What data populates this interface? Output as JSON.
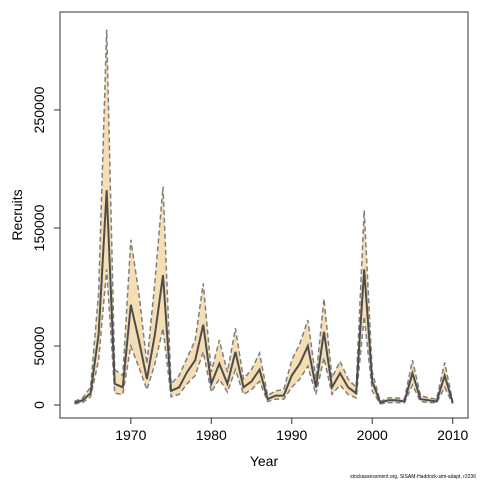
{
  "chart_data": {
    "type": "line",
    "xlabel": "Year",
    "ylabel": "Recruits",
    "footnote": "stockassessment.org, SISAM-Haddock-sim-adapt, r2236",
    "x": [
      1963,
      1964,
      1965,
      1966,
      1967,
      1968,
      1969,
      1970,
      1971,
      1972,
      1973,
      1974,
      1975,
      1976,
      1977,
      1978,
      1979,
      1980,
      1981,
      1982,
      1983,
      1984,
      1985,
      1986,
      1987,
      1988,
      1989,
      1990,
      1991,
      1992,
      1993,
      1994,
      1995,
      1996,
      1997,
      1998,
      1999,
      2000,
      2001,
      2002,
      2003,
      2004,
      2005,
      2006,
      2007,
      2008,
      2009,
      2010
    ],
    "values": [
      2000,
      4000,
      10000,
      60000,
      182000,
      18000,
      15000,
      85000,
      55000,
      22000,
      60000,
      110000,
      12000,
      15000,
      28000,
      38000,
      68000,
      18000,
      35000,
      18000,
      45000,
      15000,
      20000,
      30000,
      5000,
      8000,
      8000,
      25000,
      35000,
      50000,
      15000,
      62000,
      15000,
      27000,
      15000,
      10000,
      115000,
      20000,
      2000,
      4000,
      4000,
      3000,
      27000,
      5000,
      4000,
      3000,
      25000,
      2000
    ],
    "upper": [
      3000,
      6000,
      15000,
      95000,
      318000,
      30000,
      25000,
      140000,
      95000,
      35000,
      105000,
      185000,
      18000,
      25000,
      40000,
      55000,
      103000,
      28000,
      55000,
      28000,
      65000,
      22000,
      30000,
      44000,
      8000,
      12000,
      13000,
      38000,
      52000,
      72000,
      22000,
      90000,
      23000,
      37000,
      22000,
      15000,
      165000,
      28000,
      3000,
      6000,
      6000,
      5000,
      38000,
      8000,
      6000,
      5000,
      36000,
      3000
    ],
    "lower": [
      1000,
      2000,
      7000,
      38000,
      115000,
      10000,
      9000,
      50000,
      32000,
      13000,
      35000,
      65000,
      7000,
      9000,
      18000,
      25000,
      45000,
      11000,
      22000,
      11000,
      30000,
      9000,
      13000,
      20000,
      3000,
      5000,
      5000,
      15000,
      22000,
      33000,
      9000,
      40000,
      9000,
      17000,
      9000,
      6000,
      75000,
      12000,
      1000,
      2000,
      2000,
      2000,
      17000,
      3000,
      2000,
      2000,
      15000,
      1000
    ],
    "line_color": "#4d4d4d",
    "band_color": "#f5deb3",
    "band_edge_color": "#7f7f7f",
    "xlim": [
      1961.2,
      2011.9
    ],
    "ylim": [
      -11000,
      333000
    ],
    "xticks": [
      1970,
      1980,
      1990,
      2000,
      2010
    ],
    "yticks": [
      0,
      50000,
      150000,
      250000
    ]
  }
}
